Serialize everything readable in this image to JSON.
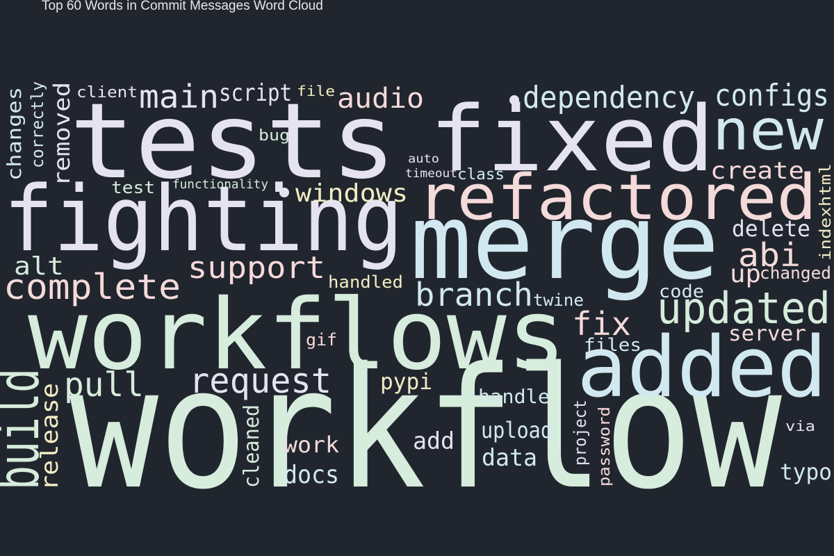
{
  "title": "Top 60 Words in Commit Messages Word Cloud",
  "colors": {
    "background": "#21262e",
    "title": "#e7e7ee",
    "palette": {
      "lav": "#e6e3f0",
      "mint": "#d6ecdc",
      "blue": "#d2e8f0",
      "pink": "#f5dada",
      "cream": "#f2ecc4"
    }
  },
  "chart_data": {
    "type": "wordcloud",
    "title": "Top 60 Words in Commit Messages Word Cloud",
    "words": [
      {
        "text": "workflow",
        "color": "mint"
      },
      {
        "text": "workflows",
        "color": "mint"
      },
      {
        "text": "tests",
        "color": "lav"
      },
      {
        "text": "fixed",
        "color": "lav"
      },
      {
        "text": "fighting",
        "color": "lav"
      },
      {
        "text": "merge",
        "color": "blue"
      },
      {
        "text": "added",
        "color": "blue"
      },
      {
        "text": "refactored",
        "color": "pink"
      },
      {
        "text": "new",
        "color": "blue"
      },
      {
        "text": "updated",
        "color": "mint"
      },
      {
        "text": "complete",
        "color": "pink"
      },
      {
        "text": "dependency",
        "color": "blue"
      },
      {
        "text": "configs",
        "color": "blue"
      },
      {
        "text": "branch",
        "color": "blue"
      },
      {
        "text": "request",
        "color": "lav"
      },
      {
        "text": "build",
        "color": "mint"
      },
      {
        "text": "main",
        "color": "lav"
      },
      {
        "text": "support",
        "color": "pink"
      },
      {
        "text": "audio",
        "color": "pink"
      },
      {
        "text": "windows",
        "color": "cream"
      },
      {
        "text": "pull",
        "color": "mint"
      },
      {
        "text": "abi",
        "color": "pink"
      },
      {
        "text": "fix",
        "color": "pink"
      },
      {
        "text": "script",
        "color": "lav"
      },
      {
        "text": "create",
        "color": "pink"
      },
      {
        "text": "release",
        "color": "cream"
      },
      {
        "text": "upload",
        "color": "blue"
      },
      {
        "text": "data",
        "color": "blue"
      },
      {
        "text": "docs",
        "color": "blue"
      },
      {
        "text": "work",
        "color": "pink"
      },
      {
        "text": "add",
        "color": "lav"
      },
      {
        "text": "alt",
        "color": "mint"
      },
      {
        "text": "up",
        "color": "pink"
      },
      {
        "text": "delete",
        "color": "lav"
      },
      {
        "text": "removed",
        "color": "lav"
      },
      {
        "text": "server",
        "color": "pink"
      },
      {
        "text": "handle",
        "color": "blue"
      },
      {
        "text": "pypi",
        "color": "cream"
      },
      {
        "text": "cleaned",
        "color": "mint"
      },
      {
        "text": "changes",
        "color": "blue"
      },
      {
        "text": "typo",
        "color": "blue"
      },
      {
        "text": "files",
        "color": "blue"
      },
      {
        "text": "code",
        "color": "blue"
      },
      {
        "text": "test",
        "color": "mint"
      },
      {
        "text": "client",
        "color": "lav"
      },
      {
        "text": "correctly",
        "color": "blue"
      },
      {
        "text": "twine",
        "color": "blue"
      },
      {
        "text": "handled",
        "color": "cream"
      },
      {
        "text": "gif",
        "color": "pink"
      },
      {
        "text": "indexhtml",
        "color": "cream"
      },
      {
        "text": "changed",
        "color": "pink"
      },
      {
        "text": "project",
        "color": "lav"
      },
      {
        "text": "password",
        "color": "pink"
      },
      {
        "text": "file",
        "color": "cream"
      },
      {
        "text": "bug",
        "color": "mint"
      },
      {
        "text": "class",
        "color": "blue"
      },
      {
        "text": "via",
        "color": "lav"
      },
      {
        "text": "functionality",
        "color": "mint"
      },
      {
        "text": "auto",
        "color": "lav"
      },
      {
        "text": "timeout",
        "color": "lav"
      }
    ]
  }
}
